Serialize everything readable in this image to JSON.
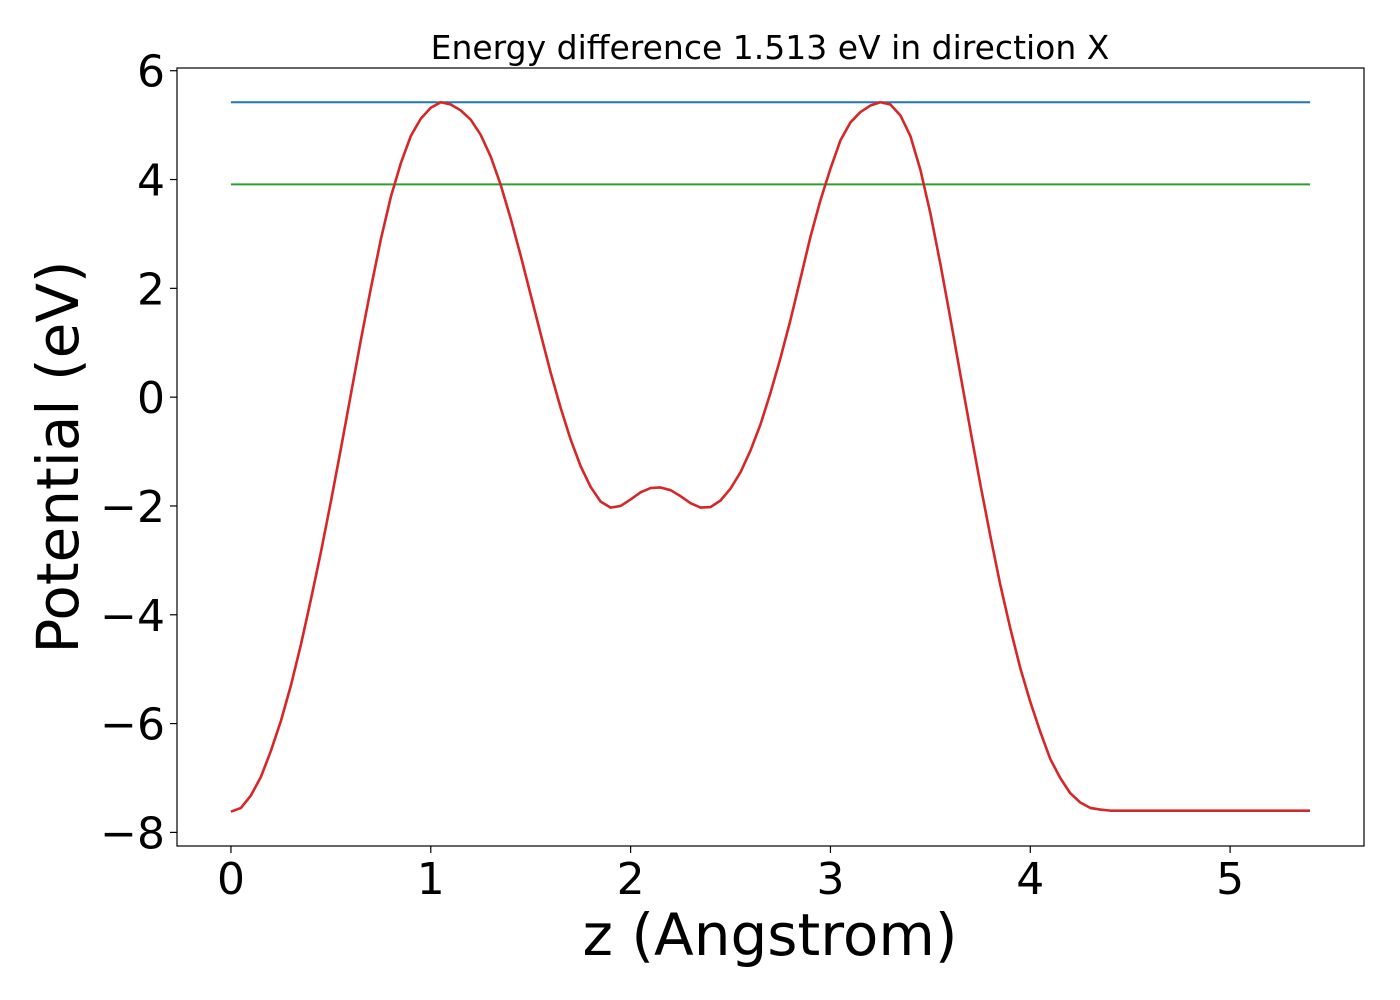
{
  "chart_data": {
    "type": "line",
    "title": "Energy difference 1.513 eV in direction X",
    "xlabel": "z (Angstrom)",
    "ylabel": "Potential (eV)",
    "xlim": [
      -0.27,
      5.67
    ],
    "ylim": [
      -8.25,
      6.05
    ],
    "xticks": [
      0,
      1,
      2,
      3,
      4,
      5
    ],
    "xtick_labels": [
      "0",
      "1",
      "2",
      "3",
      "4",
      "5"
    ],
    "yticks": [
      -8,
      -6,
      -4,
      -2,
      0,
      2,
      4,
      6
    ],
    "ytick_labels": [
      "−8",
      "−6",
      "−4",
      "−2",
      "0",
      "2",
      "4",
      "6"
    ],
    "grid": false,
    "series": [
      {
        "color": "#1f77b4",
        "x": [
          0,
          5.4
        ],
        "y": [
          5.42,
          5.42
        ]
      },
      {
        "color": "#2ca02c",
        "x": [
          0,
          5.4
        ],
        "y": [
          3.91,
          3.91
        ]
      },
      {
        "color": "#d62728",
        "x": [
          0,
          0.05,
          0.1,
          0.15,
          0.2,
          0.25,
          0.3,
          0.35,
          0.4,
          0.45,
          0.5,
          0.55,
          0.6,
          0.65,
          0.7,
          0.75,
          0.8,
          0.85,
          0.9,
          0.95,
          1.0,
          1.05,
          1.1,
          1.15,
          1.2,
          1.25,
          1.3,
          1.35,
          1.4,
          1.45,
          1.5,
          1.55,
          1.6,
          1.65,
          1.7,
          1.75,
          1.8,
          1.85,
          1.9,
          1.95,
          2.0,
          2.05,
          2.1,
          2.15,
          2.2,
          2.25,
          2.3,
          2.35,
          2.4,
          2.45,
          2.5,
          2.55,
          2.6,
          2.65,
          2.7,
          2.75,
          2.8,
          2.85,
          2.9,
          2.95,
          3.0,
          3.05,
          3.1,
          3.15,
          3.2,
          3.25,
          3.3,
          3.35,
          3.4,
          3.45,
          3.5,
          3.55,
          3.6,
          3.65,
          3.7,
          3.75,
          3.8,
          3.85,
          3.9,
          3.95,
          4.0,
          4.05,
          4.1,
          4.15,
          4.2,
          4.25,
          4.3,
          4.35,
          4.4,
          4.45,
          4.5,
          4.55,
          4.6,
          4.65,
          4.7,
          4.75,
          4.8,
          4.85,
          4.9,
          4.95,
          5.0,
          5.05,
          5.1,
          5.15,
          5.2,
          5.25,
          5.3,
          5.35,
          5.4
        ],
        "y": [
          -7.62,
          -7.55,
          -7.32,
          -6.98,
          -6.5,
          -5.95,
          -5.3,
          -4.55,
          -3.72,
          -2.85,
          -1.92,
          -0.95,
          0.05,
          1.05,
          2.0,
          2.9,
          3.68,
          4.3,
          4.8,
          5.12,
          5.32,
          5.42,
          5.38,
          5.27,
          5.1,
          4.82,
          4.42,
          3.9,
          3.28,
          2.6,
          1.88,
          1.16,
          0.45,
          -0.2,
          -0.78,
          -1.27,
          -1.65,
          -1.92,
          -2.03,
          -2.0,
          -1.88,
          -1.75,
          -1.67,
          -1.66,
          -1.71,
          -1.82,
          -1.95,
          -2.03,
          -2.02,
          -1.9,
          -1.68,
          -1.38,
          -0.98,
          -0.5,
          0.08,
          0.72,
          1.42,
          2.18,
          2.95,
          3.62,
          4.2,
          4.72,
          5.05,
          5.24,
          5.36,
          5.42,
          5.38,
          5.18,
          4.8,
          4.18,
          3.38,
          2.45,
          1.45,
          0.42,
          -0.6,
          -1.6,
          -2.55,
          -3.45,
          -4.25,
          -4.98,
          -5.6,
          -6.15,
          -6.65,
          -7.0,
          -7.28,
          -7.45,
          -7.55,
          -7.58,
          -7.6,
          -7.6,
          -7.6,
          -7.6,
          -7.6,
          -7.6,
          -7.6,
          -7.6,
          -7.6,
          -7.6,
          -7.6,
          -7.6,
          -7.6,
          -7.6,
          -7.6,
          -7.6,
          -7.6,
          -7.6,
          -7.6,
          -7.6,
          -7.6
        ]
      }
    ]
  }
}
